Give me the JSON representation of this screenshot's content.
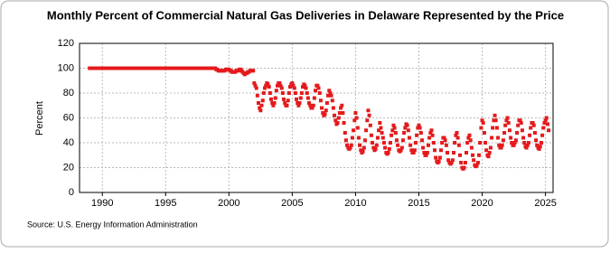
{
  "chart_data": {
    "type": "scatter",
    "title": "Monthly Percent of Commercial Natural Gas Deliveries in Delaware Represented by the Price",
    "ylabel": "Percent",
    "source": "Source: U.S. Energy Information Administration",
    "xlim": [
      1988.2,
      2025.6
    ],
    "xticks": [
      1990,
      1995,
      2000,
      2005,
      2010,
      2015,
      2020,
      2025
    ],
    "ylim": [
      0,
      120
    ],
    "yticks": [
      0,
      20,
      40,
      60,
      80,
      100,
      120
    ],
    "grid": true,
    "series": [
      {
        "color": "#e41a1c",
        "x": [
          1989,
          1989.08,
          1989.17,
          1989.25,
          1989.33,
          1989.42,
          1989.5,
          1989.58,
          1989.67,
          1989.75,
          1989.83,
          1989.92,
          1990,
          1990.08,
          1990.17,
          1990.25,
          1990.33,
          1990.42,
          1990.5,
          1990.58,
          1990.67,
          1990.75,
          1990.83,
          1990.92,
          1991,
          1991.08,
          1991.17,
          1991.25,
          1991.33,
          1991.42,
          1991.5,
          1991.58,
          1991.67,
          1991.75,
          1991.83,
          1991.92,
          1992,
          1992.08,
          1992.17,
          1992.25,
          1992.33,
          1992.42,
          1992.5,
          1992.58,
          1992.67,
          1992.75,
          1992.83,
          1992.92,
          1993,
          1993.08,
          1993.17,
          1993.25,
          1993.33,
          1993.42,
          1993.5,
          1993.58,
          1993.67,
          1993.75,
          1993.83,
          1993.92,
          1994,
          1994.08,
          1994.17,
          1994.25,
          1994.33,
          1994.42,
          1994.5,
          1994.58,
          1994.67,
          1994.75,
          1994.83,
          1994.92,
          1995,
          1995.08,
          1995.17,
          1995.25,
          1995.33,
          1995.42,
          1995.5,
          1995.58,
          1995.67,
          1995.75,
          1995.83,
          1995.92,
          1996,
          1996.08,
          1996.17,
          1996.25,
          1996.33,
          1996.42,
          1996.5,
          1996.58,
          1996.67,
          1996.75,
          1996.83,
          1996.92,
          1997,
          1997.08,
          1997.17,
          1997.25,
          1997.33,
          1997.42,
          1997.5,
          1997.58,
          1997.67,
          1997.75,
          1997.83,
          1997.92,
          1998,
          1998.08,
          1998.17,
          1998.25,
          1998.33,
          1998.42,
          1998.5,
          1998.58,
          1998.67,
          1998.75,
          1998.83,
          1998.92,
          1999,
          1999.08,
          1999.17,
          1999.25,
          1999.33,
          1999.42,
          1999.5,
          1999.58,
          1999.67,
          1999.75,
          1999.83,
          1999.92,
          2000,
          2000.08,
          2000.17,
          2000.25,
          2000.33,
          2000.42,
          2000.5,
          2000.58,
          2000.67,
          2000.75,
          2000.83,
          2000.92,
          2001,
          2001.08,
          2001.17,
          2001.25,
          2001.33,
          2001.42,
          2001.5,
          2001.58,
          2001.67,
          2001.75,
          2001.83,
          2001.92,
          2002,
          2002.08,
          2002.17,
          2002.25,
          2002.33,
          2002.42,
          2002.5,
          2002.58,
          2002.67,
          2002.75,
          2002.83,
          2002.92,
          2003,
          2003.08,
          2003.17,
          2003.25,
          2003.33,
          2003.42,
          2003.5,
          2003.58,
          2003.67,
          2003.75,
          2003.83,
          2003.92,
          2004,
          2004.08,
          2004.17,
          2004.25,
          2004.33,
          2004.42,
          2004.5,
          2004.58,
          2004.67,
          2004.75,
          2004.83,
          2004.92,
          2005,
          2005.08,
          2005.17,
          2005.25,
          2005.33,
          2005.42,
          2005.5,
          2005.58,
          2005.67,
          2005.75,
          2005.83,
          2005.92,
          2006,
          2006.08,
          2006.17,
          2006.25,
          2006.33,
          2006.42,
          2006.5,
          2006.58,
          2006.67,
          2006.75,
          2006.83,
          2006.92,
          2007,
          2007.08,
          2007.17,
          2007.25,
          2007.33,
          2007.42,
          2007.5,
          2007.58,
          2007.67,
          2007.75,
          2007.83,
          2007.92,
          2008,
          2008.08,
          2008.17,
          2008.25,
          2008.33,
          2008.42,
          2008.5,
          2008.58,
          2008.67,
          2008.75,
          2008.83,
          2008.92,
          2009,
          2009.08,
          2009.17,
          2009.25,
          2009.33,
          2009.42,
          2009.5,
          2009.58,
          2009.67,
          2009.75,
          2009.83,
          2009.92,
          2010,
          2010.08,
          2010.17,
          2010.25,
          2010.33,
          2010.42,
          2010.5,
          2010.58,
          2010.67,
          2010.75,
          2010.83,
          2010.92,
          2011,
          2011.08,
          2011.17,
          2011.25,
          2011.33,
          2011.42,
          2011.5,
          2011.58,
          2011.67,
          2011.75,
          2011.83,
          2011.92,
          2012,
          2012.08,
          2012.17,
          2012.25,
          2012.33,
          2012.42,
          2012.5,
          2012.58,
          2012.67,
          2012.75,
          2012.83,
          2012.92,
          2013,
          2013.08,
          2013.17,
          2013.25,
          2013.33,
          2013.42,
          2013.5,
          2013.58,
          2013.67,
          2013.75,
          2013.83,
          2013.92,
          2014,
          2014.08,
          2014.17,
          2014.25,
          2014.33,
          2014.42,
          2014.5,
          2014.58,
          2014.67,
          2014.75,
          2014.83,
          2014.92,
          2015,
          2015.08,
          2015.17,
          2015.25,
          2015.33,
          2015.42,
          2015.5,
          2015.58,
          2015.67,
          2015.75,
          2015.83,
          2015.92,
          2016,
          2016.08,
          2016.17,
          2016.25,
          2016.33,
          2016.42,
          2016.5,
          2016.58,
          2016.67,
          2016.75,
          2016.83,
          2016.92,
          2017,
          2017.08,
          2017.17,
          2017.25,
          2017.33,
          2017.42,
          2017.5,
          2017.58,
          2017.67,
          2017.75,
          2017.83,
          2017.92,
          2018,
          2018.08,
          2018.17,
          2018.25,
          2018.33,
          2018.42,
          2018.5,
          2018.58,
          2018.67,
          2018.75,
          2018.83,
          2018.92,
          2019,
          2019.08,
          2019.17,
          2019.25,
          2019.33,
          2019.42,
          2019.5,
          2019.58,
          2019.67,
          2019.75,
          2019.83,
          2019.92,
          2020,
          2020.08,
          2020.17,
          2020.25,
          2020.33,
          2020.42,
          2020.5,
          2020.58,
          2020.67,
          2020.75,
          2020.83,
          2020.92,
          2021,
          2021.08,
          2021.17,
          2021.25,
          2021.33,
          2021.42,
          2021.5,
          2021.58,
          2021.67,
          2021.75,
          2021.83,
          2021.92,
          2022,
          2022.08,
          2022.17,
          2022.25,
          2022.33,
          2022.42,
          2022.5,
          2022.58,
          2022.67,
          2022.75,
          2022.83,
          2022.92,
          2023,
          2023.08,
          2023.17,
          2023.25,
          2023.33,
          2023.42,
          2023.5,
          2023.58,
          2023.67,
          2023.75,
          2023.83,
          2023.92,
          2024,
          2024.08,
          2024.17,
          2024.25,
          2024.33,
          2024.42,
          2024.5,
          2024.58,
          2024.67,
          2024.75,
          2024.83,
          2024.92,
          2025,
          2025.08,
          2025.17,
          2025.25
        ],
        "values": [
          100,
          100,
          100,
          100,
          100,
          100,
          100,
          100,
          100,
          100,
          100,
          100,
          100,
          100,
          100,
          100,
          100,
          100,
          100,
          100,
          100,
          100,
          100,
          100,
          100,
          100,
          100,
          100,
          100,
          100,
          100,
          100,
          100,
          100,
          100,
          100,
          100,
          100,
          100,
          100,
          100,
          100,
          100,
          100,
          100,
          100,
          100,
          100,
          100,
          100,
          100,
          100,
          100,
          100,
          100,
          100,
          100,
          100,
          100,
          100,
          100,
          100,
          100,
          100,
          100,
          100,
          100,
          100,
          100,
          100,
          100,
          100,
          100,
          100,
          100,
          100,
          100,
          100,
          100,
          100,
          100,
          100,
          100,
          100,
          100,
          100,
          100,
          100,
          100,
          100,
          100,
          100,
          100,
          100,
          100,
          100,
          100,
          100,
          100,
          100,
          100,
          100,
          100,
          100,
          100,
          100,
          100,
          100,
          100,
          100,
          100,
          100,
          100,
          100,
          100,
          100,
          100,
          100,
          100,
          100,
          99,
          99,
          98,
          98,
          98,
          98,
          98,
          98,
          98,
          99,
          99,
          99,
          99,
          98,
          98,
          97,
          97,
          97,
          97,
          98,
          98,
          98,
          99,
          99,
          98,
          97,
          96,
          95,
          96,
          96,
          97,
          97,
          98,
          98,
          98,
          98,
          88,
          86,
          84,
          78,
          72,
          68,
          66,
          70,
          74,
          80,
          84,
          86,
          88,
          87,
          85,
          80,
          75,
          72,
          70,
          72,
          76,
          82,
          86,
          88,
          88,
          86,
          84,
          80,
          75,
          72,
          70,
          70,
          74,
          80,
          85,
          87,
          88,
          86,
          84,
          80,
          75,
          72,
          70,
          72,
          76,
          80,
          85,
          87,
          86,
          84,
          80,
          76,
          72,
          70,
          68,
          68,
          70,
          76,
          82,
          86,
          86,
          84,
          80,
          74,
          68,
          64,
          62,
          63,
          66,
          72,
          78,
          82,
          80,
          78,
          74,
          68,
          62,
          58,
          55,
          56,
          60,
          64,
          68,
          70,
          64,
          56,
          48,
          42,
          38,
          36,
          35,
          36,
          38,
          44,
          50,
          58,
          64,
          60,
          52,
          44,
          38,
          34,
          32,
          33,
          36,
          42,
          50,
          58,
          66,
          62,
          54,
          46,
          40,
          36,
          34,
          35,
          38,
          44,
          50,
          56,
          52,
          48,
          44,
          40,
          36,
          32,
          31,
          32,
          35,
          40,
          46,
          50,
          54,
          52,
          48,
          42,
          38,
          34,
          33,
          34,
          36,
          42,
          48,
          52,
          55,
          54,
          50,
          44,
          38,
          34,
          32,
          32,
          34,
          40,
          46,
          52,
          54,
          52,
          48,
          42,
          36,
          32,
          30,
          30,
          32,
          38,
          44,
          48,
          50,
          46,
          40,
          34,
          28,
          25,
          24,
          25,
          28,
          34,
          40,
          44,
          44,
          42,
          38,
          32,
          26,
          24,
          23,
          24,
          26,
          32,
          40,
          46,
          48,
          44,
          38,
          30,
          24,
          20,
          19,
          20,
          24,
          32,
          40,
          44,
          46,
          42,
          36,
          30,
          26,
          22,
          21,
          22,
          24,
          30,
          40,
          52,
          58,
          56,
          48,
          40,
          34,
          30,
          29,
          32,
          36,
          44,
          52,
          58,
          62,
          58,
          52,
          44,
          38,
          36,
          36,
          38,
          42,
          48,
          54,
          58,
          60,
          56,
          50,
          44,
          40,
          38,
          38,
          40,
          42,
          48,
          54,
          58,
          58,
          56,
          50,
          44,
          40,
          37,
          36,
          38,
          40,
          46,
          52,
          56,
          56,
          54,
          48,
          42,
          38,
          36,
          35,
          37,
          40,
          46,
          52,
          56,
          58,
          60,
          55,
          50
        ]
      }
    ]
  }
}
